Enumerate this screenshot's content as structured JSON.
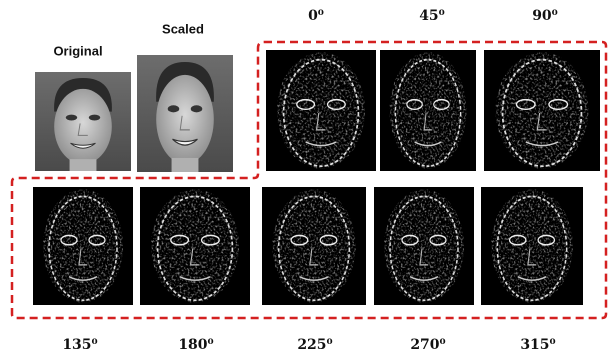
{
  "labels": {
    "original": "Original",
    "scaled": "Scaled"
  },
  "angles": [
    "0⁰",
    "45⁰",
    "90⁰",
    "135⁰",
    "180⁰",
    "225⁰",
    "270⁰",
    "315⁰"
  ]
}
